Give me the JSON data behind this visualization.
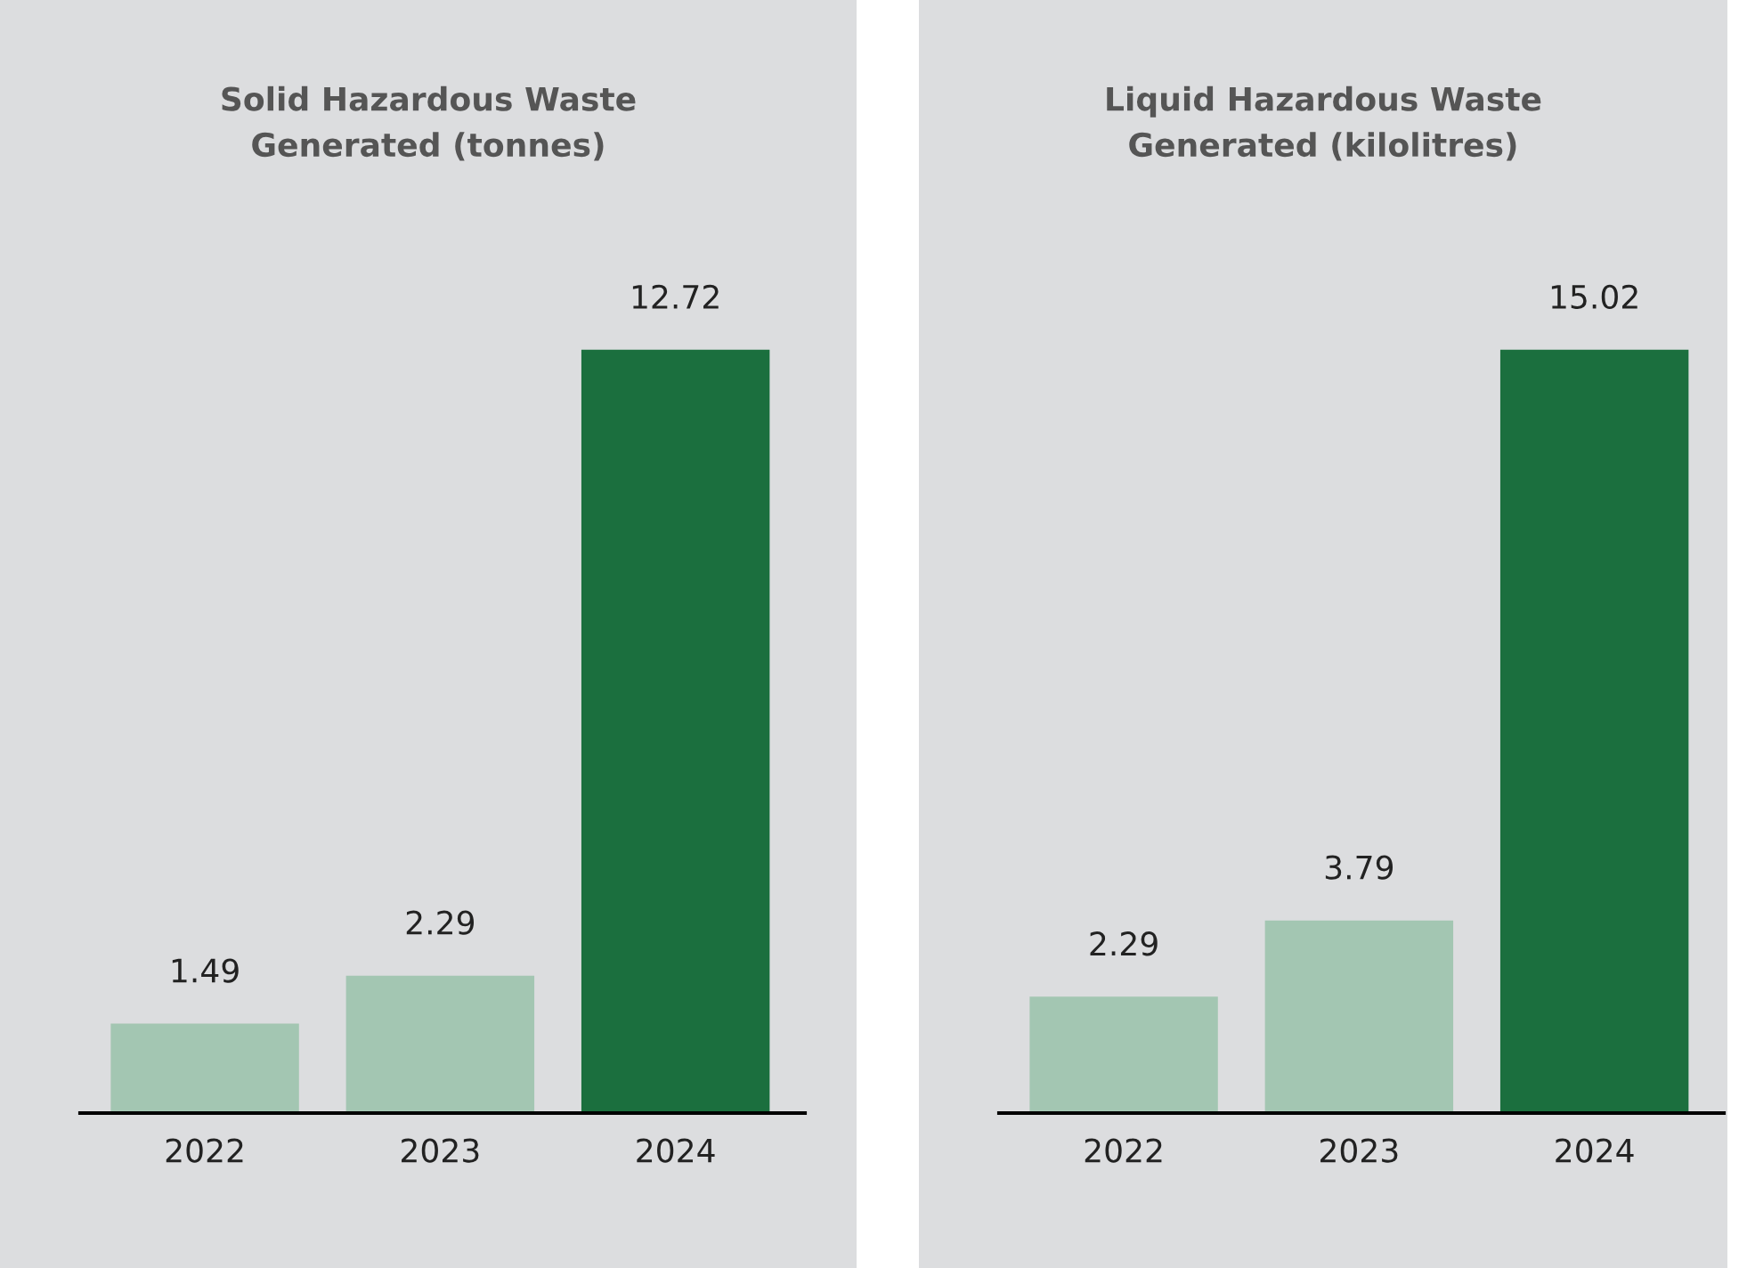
{
  "chart_data": [
    {
      "type": "bar",
      "title": "Solid Hazardous Waste\nGenerated (tonnes)",
      "categories": [
        "2022",
        "2023",
        "2024"
      ],
      "values": [
        1.49,
        2.29,
        12.72
      ],
      "colors": [
        "#a3c6b2",
        "#a3c6b2",
        "#1b6f3e"
      ],
      "data_labels": true,
      "grid": false,
      "legend": false,
      "tick_labels": "x"
    },
    {
      "type": "bar",
      "title": "Liquid Hazardous Waste\nGenerated (kilolitres)",
      "categories": [
        "2022",
        "2023",
        "2024"
      ],
      "values": [
        2.29,
        3.79,
        15.02
      ],
      "colors": [
        "#a3c6b2",
        "#a3c6b2",
        "#1b6f3e"
      ],
      "data_labels": true,
      "grid": false,
      "legend": false,
      "tick_labels": "x"
    }
  ]
}
